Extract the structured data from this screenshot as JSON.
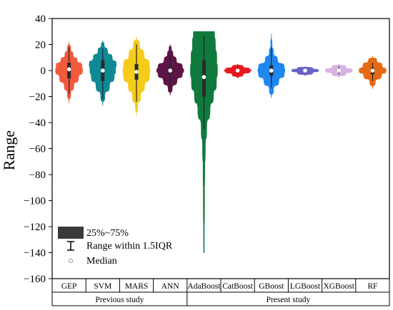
{
  "chart_data": {
    "type": "violin",
    "ylabel": "Range",
    "ylim": [
      -160,
      40
    ],
    "yticks": [
      40,
      20,
      0,
      -20,
      -40,
      -60,
      -80,
      -100,
      -120,
      -140,
      -160
    ],
    "grid": false,
    "legend_position": "bottom-left",
    "legend": {
      "iqr_label": "25%~75%",
      "whisker_label": "Range within 1.5IQR",
      "median_label": "Median"
    },
    "groups": [
      {
        "label": "Previous study",
        "categories": [
          "GEP",
          "SVM",
          "MARS",
          "ANN"
        ]
      },
      {
        "label": "Present study",
        "categories": [
          "AdaBoost",
          "CatBoost",
          "GBoost",
          "LGBoost",
          "XGBoost",
          "RF"
        ]
      }
    ],
    "series": [
      {
        "category": "GEP",
        "color": "#f15a3c",
        "min": -25,
        "max": 22,
        "q1": -6,
        "median": 1,
        "q3": 6,
        "whisker_low": -18,
        "whisker_high": 18,
        "profile": [
          [
            -25,
            0
          ],
          [
            -18,
            0.12
          ],
          [
            -12,
            0.35
          ],
          [
            -6,
            0.7
          ],
          [
            0,
            1
          ],
          [
            4,
            0.95
          ],
          [
            8,
            0.6
          ],
          [
            12,
            0.3
          ],
          [
            17,
            0.12
          ],
          [
            22,
            0
          ]
        ]
      },
      {
        "category": "SVM",
        "color": "#0f8a95",
        "min": -27,
        "max": 23,
        "q1": -8,
        "median": 0,
        "q3": 8,
        "whisker_low": -22,
        "whisker_high": 17,
        "profile": [
          [
            -27,
            0
          ],
          [
            -20,
            0.15
          ],
          [
            -12,
            0.5
          ],
          [
            -5,
            0.85
          ],
          [
            0,
            0.95
          ],
          [
            5,
            1
          ],
          [
            10,
            0.7
          ],
          [
            15,
            0.35
          ],
          [
            20,
            0.1
          ],
          [
            23,
            0
          ]
        ]
      },
      {
        "category": "MARS",
        "color": "#f5cc1a",
        "min": -35,
        "max": 26,
        "q1": -7,
        "median": -1,
        "q3": 5,
        "whisker_low": -24,
        "whisker_high": 20,
        "profile": [
          [
            -35,
            0
          ],
          [
            -28,
            0.08
          ],
          [
            -20,
            0.3
          ],
          [
            -12,
            0.6
          ],
          [
            -5,
            0.95
          ],
          [
            0,
            1
          ],
          [
            5,
            0.95
          ],
          [
            12,
            0.55
          ],
          [
            20,
            0.22
          ],
          [
            26,
            0
          ]
        ]
      },
      {
        "category": "ANN",
        "color": "#5e1447",
        "min": -19,
        "max": 20,
        "q1": -4,
        "median": 0,
        "q3": 3,
        "whisker_low": -14,
        "whisker_high": 12,
        "profile": [
          [
            -19,
            0
          ],
          [
            -14,
            0.15
          ],
          [
            -8,
            0.5
          ],
          [
            -3,
            0.9
          ],
          [
            0,
            1
          ],
          [
            3,
            0.9
          ],
          [
            8,
            0.45
          ],
          [
            13,
            0.2
          ],
          [
            17,
            0.08
          ],
          [
            20,
            0
          ]
        ]
      },
      {
        "category": "AdaBoost",
        "color": "#107a3d",
        "min": -140,
        "max": 30,
        "q1": -20,
        "median": -5,
        "q3": 8,
        "whisker_low": -45,
        "whisker_high": 27,
        "profile": [
          [
            -140,
            0.02
          ],
          [
            -100,
            0.04
          ],
          [
            -80,
            0.06
          ],
          [
            -60,
            0.1
          ],
          [
            -45,
            0.2
          ],
          [
            -30,
            0.45
          ],
          [
            -20,
            0.7
          ],
          [
            -10,
            0.92
          ],
          [
            0,
            1
          ],
          [
            10,
            0.95
          ],
          [
            20,
            0.85
          ],
          [
            30,
            0.78
          ]
        ]
      },
      {
        "category": "CatBoost",
        "color": "#e8181e",
        "min": -6,
        "max": 5,
        "q1": -1,
        "median": 0,
        "q3": 1,
        "whisker_low": -3,
        "whisker_high": 3,
        "profile": [
          [
            -6,
            0
          ],
          [
            -3,
            0.4
          ],
          [
            -1,
            0.9
          ],
          [
            0,
            1
          ],
          [
            1,
            0.9
          ],
          [
            3,
            0.4
          ],
          [
            5,
            0
          ]
        ]
      },
      {
        "category": "GBoost",
        "color": "#1e88f0",
        "min": -21,
        "max": 28,
        "q1": -4,
        "median": 0,
        "q3": 4,
        "whisker_low": -13,
        "whisker_high": 18,
        "profile": [
          [
            -21,
            0
          ],
          [
            -15,
            0.15
          ],
          [
            -8,
            0.55
          ],
          [
            -3,
            0.95
          ],
          [
            0,
            1
          ],
          [
            3,
            0.95
          ],
          [
            8,
            0.45
          ],
          [
            14,
            0.15
          ],
          [
            20,
            0.05
          ],
          [
            28,
            0
          ]
        ]
      },
      {
        "category": "LGBoost",
        "color": "#6a63c4",
        "min": -4,
        "max": 3,
        "q1": -1,
        "median": 0,
        "q3": 1,
        "whisker_low": -2,
        "whisker_high": 2,
        "profile": [
          [
            -4,
            0
          ],
          [
            -2,
            0.55
          ],
          [
            0,
            1
          ],
          [
            2,
            0.55
          ],
          [
            3,
            0
          ]
        ]
      },
      {
        "category": "XGBoost",
        "color": "#d9b3e3",
        "min": -5,
        "max": 5,
        "q1": -1,
        "median": 0,
        "q3": 1,
        "whisker_low": -3,
        "whisker_high": 3,
        "profile": [
          [
            -5,
            0
          ],
          [
            -3,
            0.5
          ],
          [
            0,
            1
          ],
          [
            3,
            0.5
          ],
          [
            5,
            0
          ]
        ]
      },
      {
        "category": "RF",
        "color": "#e56a12",
        "min": -14,
        "max": 11,
        "q1": -3,
        "median": 0,
        "q3": 2,
        "whisker_low": -8,
        "whisker_high": 6,
        "profile": [
          [
            -14,
            0
          ],
          [
            -9,
            0.2
          ],
          [
            -4,
            0.65
          ],
          [
            0,
            1
          ],
          [
            4,
            0.7
          ],
          [
            8,
            0.3
          ],
          [
            11,
            0
          ]
        ]
      }
    ]
  }
}
